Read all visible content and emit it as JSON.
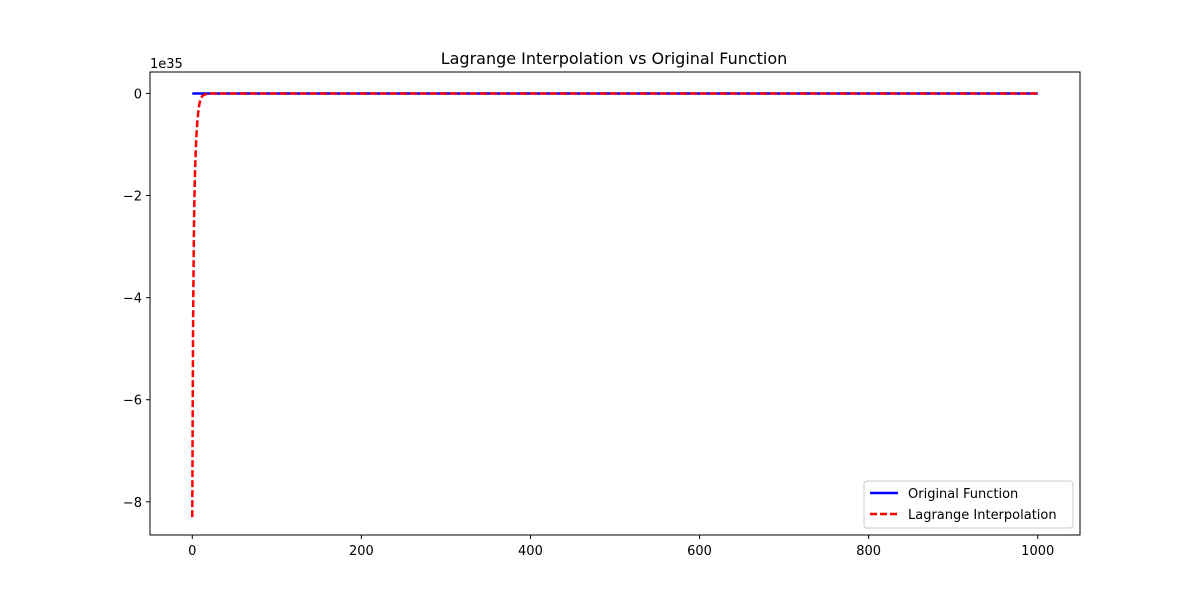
{
  "chart_data": {
    "type": "line",
    "title": "Lagrange Interpolation vs Original Function",
    "xlabel": "",
    "ylabel": "",
    "offset_text": "1e35",
    "xlim": [
      -50,
      1050
    ],
    "ylim": [
      -8.65,
      0.42
    ],
    "x_ticks": [
      0,
      200,
      400,
      600,
      800,
      1000
    ],
    "x_tick_labels": [
      "0",
      "200",
      "400",
      "600",
      "800",
      "1000"
    ],
    "y_ticks": [
      0,
      -2,
      -4,
      -6,
      -8
    ],
    "y_tick_labels": [
      "0",
      "−2",
      "−4",
      "−6",
      "−8"
    ],
    "grid": false,
    "legend_position": "lower-right",
    "series": [
      {
        "name": "Original Function",
        "color": "#0000ff",
        "style": "solid",
        "x": [
          0,
          1000
        ],
        "y": [
          0,
          0
        ]
      },
      {
        "name": "Lagrange Interpolation",
        "color": "#ff0000",
        "style": "dashed",
        "x": [
          0,
          0.5,
          1,
          1.5,
          2,
          2.5,
          3,
          4,
          5,
          6,
          7,
          8,
          9,
          10,
          12,
          15,
          20,
          50,
          100,
          300,
          600,
          1000
        ],
        "y": [
          -8.3,
          -6.2,
          -4.4,
          -3.5,
          -2.6,
          -2.1,
          -1.7,
          -1.15,
          -0.8,
          -0.55,
          -0.38,
          -0.25,
          -0.16,
          -0.1,
          -0.05,
          -0.02,
          0,
          0,
          0,
          0,
          0,
          0
        ]
      }
    ]
  }
}
